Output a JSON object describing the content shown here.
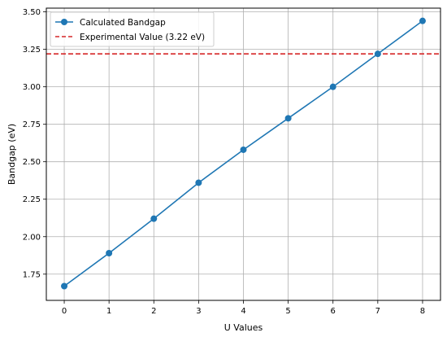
{
  "chart_data": {
    "type": "line",
    "title": "",
    "xlabel": "U Values",
    "ylabel": "Bandgap (eV)",
    "xlim": [
      -0.4,
      8.4
    ],
    "ylim": [
      1.575,
      3.525
    ],
    "x_ticks": [
      0,
      1,
      2,
      3,
      4,
      5,
      6,
      7,
      8
    ],
    "x_tick_labels": [
      "0",
      "1",
      "2",
      "3",
      "4",
      "5",
      "6",
      "7",
      "8"
    ],
    "y_ticks": [
      1.75,
      2.0,
      2.25,
      2.5,
      2.75,
      3.0,
      3.25,
      3.5
    ],
    "y_tick_labels": [
      "1.75",
      "2.00",
      "2.25",
      "2.50",
      "2.75",
      "3.00",
      "3.25",
      "3.50"
    ],
    "grid": true,
    "legend_position": "top-left",
    "series": [
      {
        "name": "Calculated Bandgap",
        "x": [
          0,
          1,
          2,
          3,
          4,
          5,
          6,
          7,
          8
        ],
        "y": [
          1.67,
          1.89,
          2.12,
          2.36,
          2.58,
          2.79,
          3.0,
          3.22,
          3.44
        ],
        "color": "#1f77b4",
        "marker": "circle",
        "line_style": "solid"
      }
    ],
    "reference_lines": [
      {
        "name": "Experimental Value (3.22 eV)",
        "orientation": "horizontal",
        "y": 3.22,
        "color": "#d62728",
        "line_style": "dashed"
      }
    ]
  }
}
